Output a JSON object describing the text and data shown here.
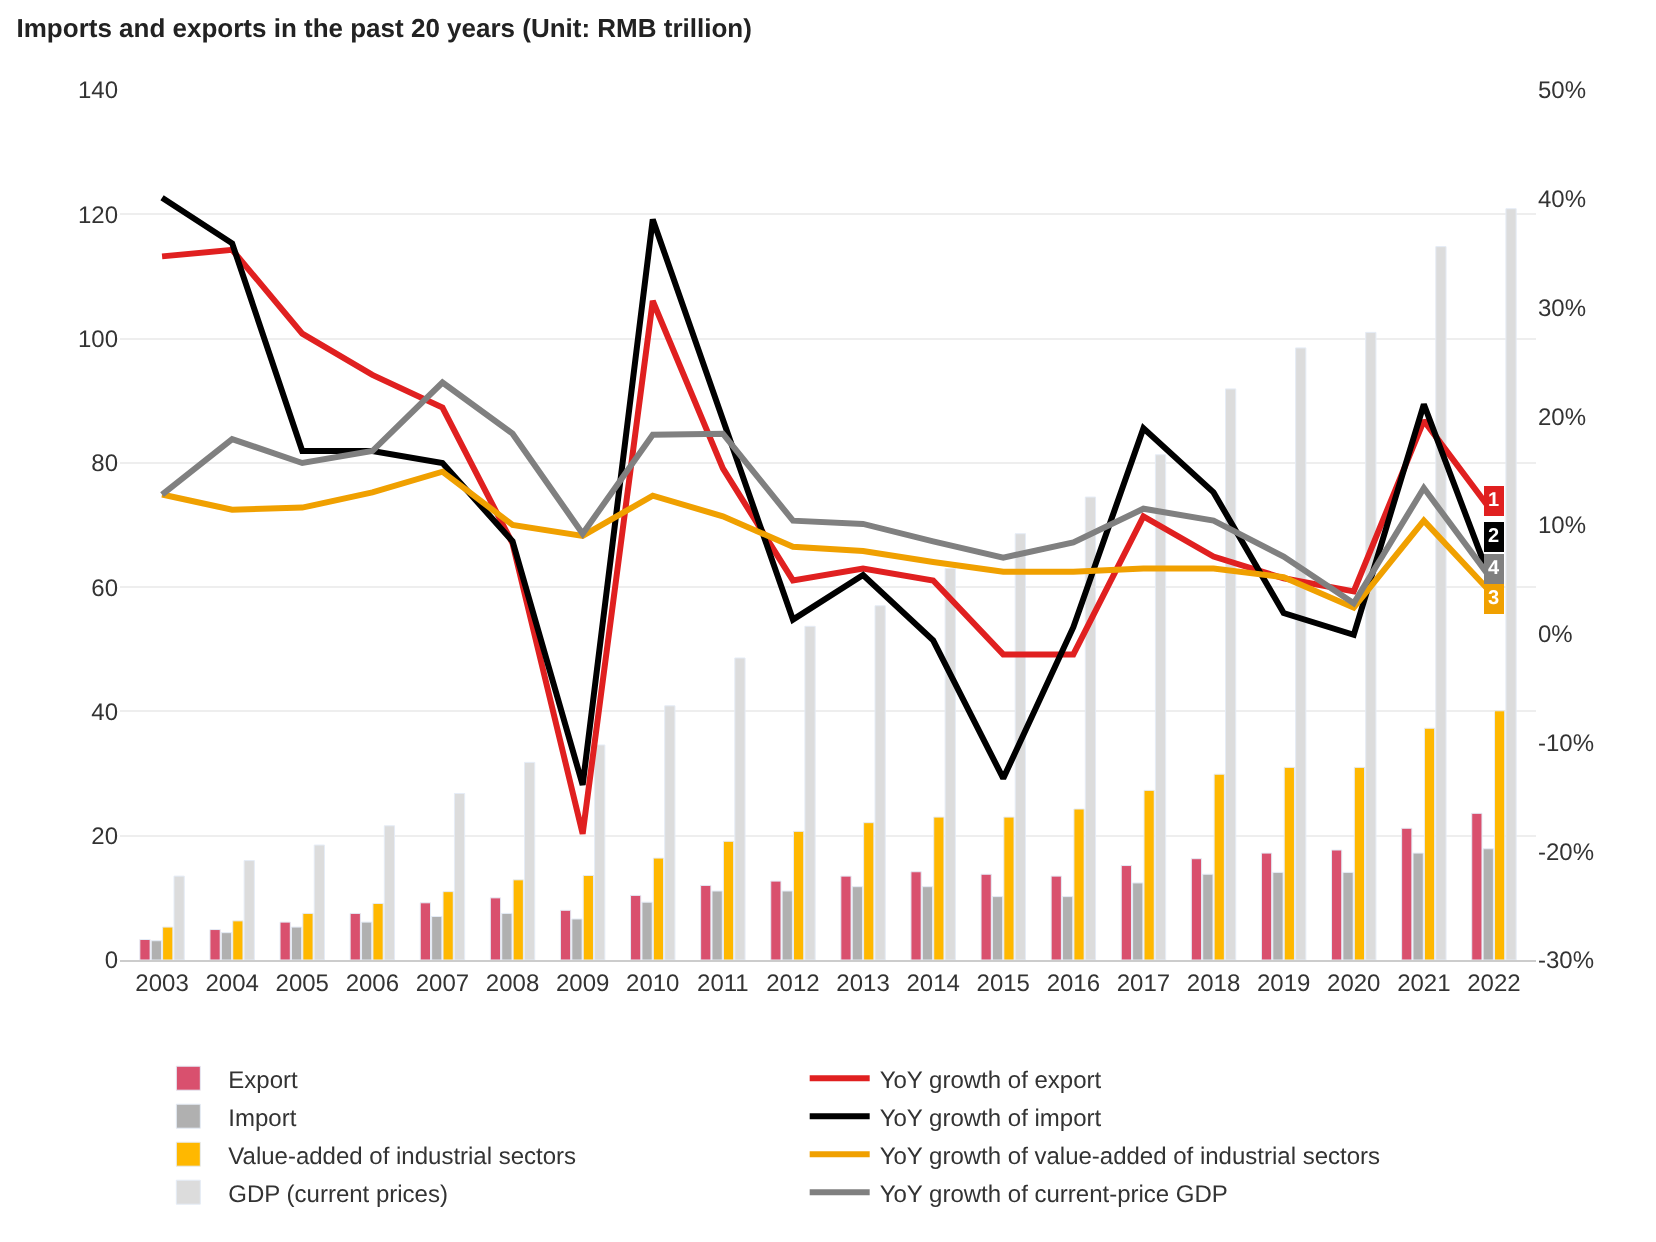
{
  "chart_data": {
    "type": "bar",
    "title": "Imports and exports in the past 20 years (Unit: RMB trillion)",
    "categories": [
      "2003",
      "2004",
      "2005",
      "2006",
      "2007",
      "2008",
      "2009",
      "2010",
      "2011",
      "2012",
      "2013",
      "2014",
      "2015",
      "2016",
      "2017",
      "2018",
      "2019",
      "2020",
      "2021",
      "2022"
    ],
    "series": [
      {
        "name": "Export",
        "color": "#d9506e",
        "values": [
          3.3,
          4.9,
          6.1,
          7.5,
          9.2,
          10,
          8,
          10.4,
          12,
          12.7,
          13.5,
          14.2,
          13.8,
          13.5,
          15.2,
          16.3,
          17.2,
          17.7,
          21.2,
          23.6
        ]
      },
      {
        "name": "Import",
        "color": "#b0b0b0",
        "values": [
          3.1,
          4.4,
          5.3,
          6.1,
          7,
          7.5,
          6.6,
          9.3,
          11.1,
          11.1,
          11.8,
          11.8,
          10.2,
          10.2,
          12.4,
          13.8,
          14.1,
          14.1,
          17.2,
          17.9
        ]
      },
      {
        "name": "Value-added of industrial sectors",
        "color": "#ffb800",
        "values": [
          5.3,
          6.3,
          7.5,
          9.1,
          11,
          12.9,
          13.6,
          16.4,
          19.1,
          20.7,
          22.1,
          23,
          23,
          24.3,
          27.3,
          29.9,
          31,
          31,
          37.3,
          40.1
        ]
      },
      {
        "name": "GDP (current prices)",
        "color": "#dcdcdc",
        "values": [
          13.5,
          16,
          18.5,
          21.6,
          26.8,
          31.8,
          34.6,
          40.9,
          48.6,
          53.7,
          57,
          63,
          68.6,
          74.5,
          81.3,
          91.9,
          98.5,
          101,
          114.8,
          120.9
        ]
      },
      {
        "name": "YoY growth of export",
        "type": "line",
        "axis": "y2",
        "color": "#e02020",
        "values": [
          34.7,
          35.3,
          27.6,
          23.8,
          20.8,
          8.3,
          -18.4,
          30.6,
          15.2,
          4.9,
          6,
          4.9,
          -1.9,
          -1.9,
          10.8,
          7.1,
          5.1,
          3.9,
          19.6,
          11
        ]
      },
      {
        "name": "YoY growth of import",
        "type": "line",
        "axis": "y2",
        "color": "#000000",
        "values": [
          40.1,
          35.9,
          16.8,
          16.8,
          15.7,
          8.5,
          -13.9,
          38.1,
          19.7,
          1.3,
          5.4,
          -0.6,
          -13.3,
          0.6,
          18.9,
          13,
          1.9,
          -0.1,
          21.1,
          4.1
        ]
      },
      {
        "name": "YoY growth of value-added of industrial sectors",
        "type": "line",
        "axis": "y2",
        "color": "#f0a000",
        "values": [
          12.8,
          11.4,
          11.6,
          13,
          14.9,
          10,
          9,
          12.7,
          10.8,
          8,
          7.6,
          6.6,
          5.7,
          5.7,
          6,
          6,
          5.2,
          2.4,
          10.4,
          3.5
        ]
      },
      {
        "name": "YoY growth of current-price GDP",
        "type": "line",
        "axis": "y2",
        "color": "#808080",
        "values": [
          12.8,
          17.9,
          15.7,
          16.8,
          23.1,
          18.4,
          9.2,
          18.3,
          18.4,
          10.4,
          10.1,
          8.5,
          7,
          8.4,
          11.5,
          10.4,
          7.1,
          2.8,
          13.4,
          4.7
        ]
      }
    ],
    "annotations": [
      {
        "text": "1",
        "x": "2022",
        "y": 74
      },
      {
        "text": "2",
        "x": "2022",
        "y": 68
      },
      {
        "text": "3",
        "x": "2022",
        "y": 58
      },
      {
        "text": "4",
        "x": "2022",
        "y": 63
      }
    ],
    "ylim": [
      0,
      140
    ],
    "yticks": [
      0,
      20,
      40,
      60,
      80,
      100,
      120,
      140
    ],
    "y2lim": [
      -30,
      50
    ],
    "y2ticks": [
      {
        "value": -30,
        "label": "-30%"
      },
      {
        "value": -20,
        "label": "-20%"
      },
      {
        "value": -10,
        "label": "-10%"
      },
      {
        "value": 0,
        "label": "0%"
      },
      {
        "value": 10,
        "label": "10%"
      },
      {
        "value": 20,
        "label": "20%"
      },
      {
        "value": 30,
        "label": "30%"
      },
      {
        "value": 40,
        "label": "40%"
      },
      {
        "value": 50,
        "label": "50%"
      }
    ],
    "grid": "y",
    "legend": "bottom",
    "line_style": "solid"
  }
}
